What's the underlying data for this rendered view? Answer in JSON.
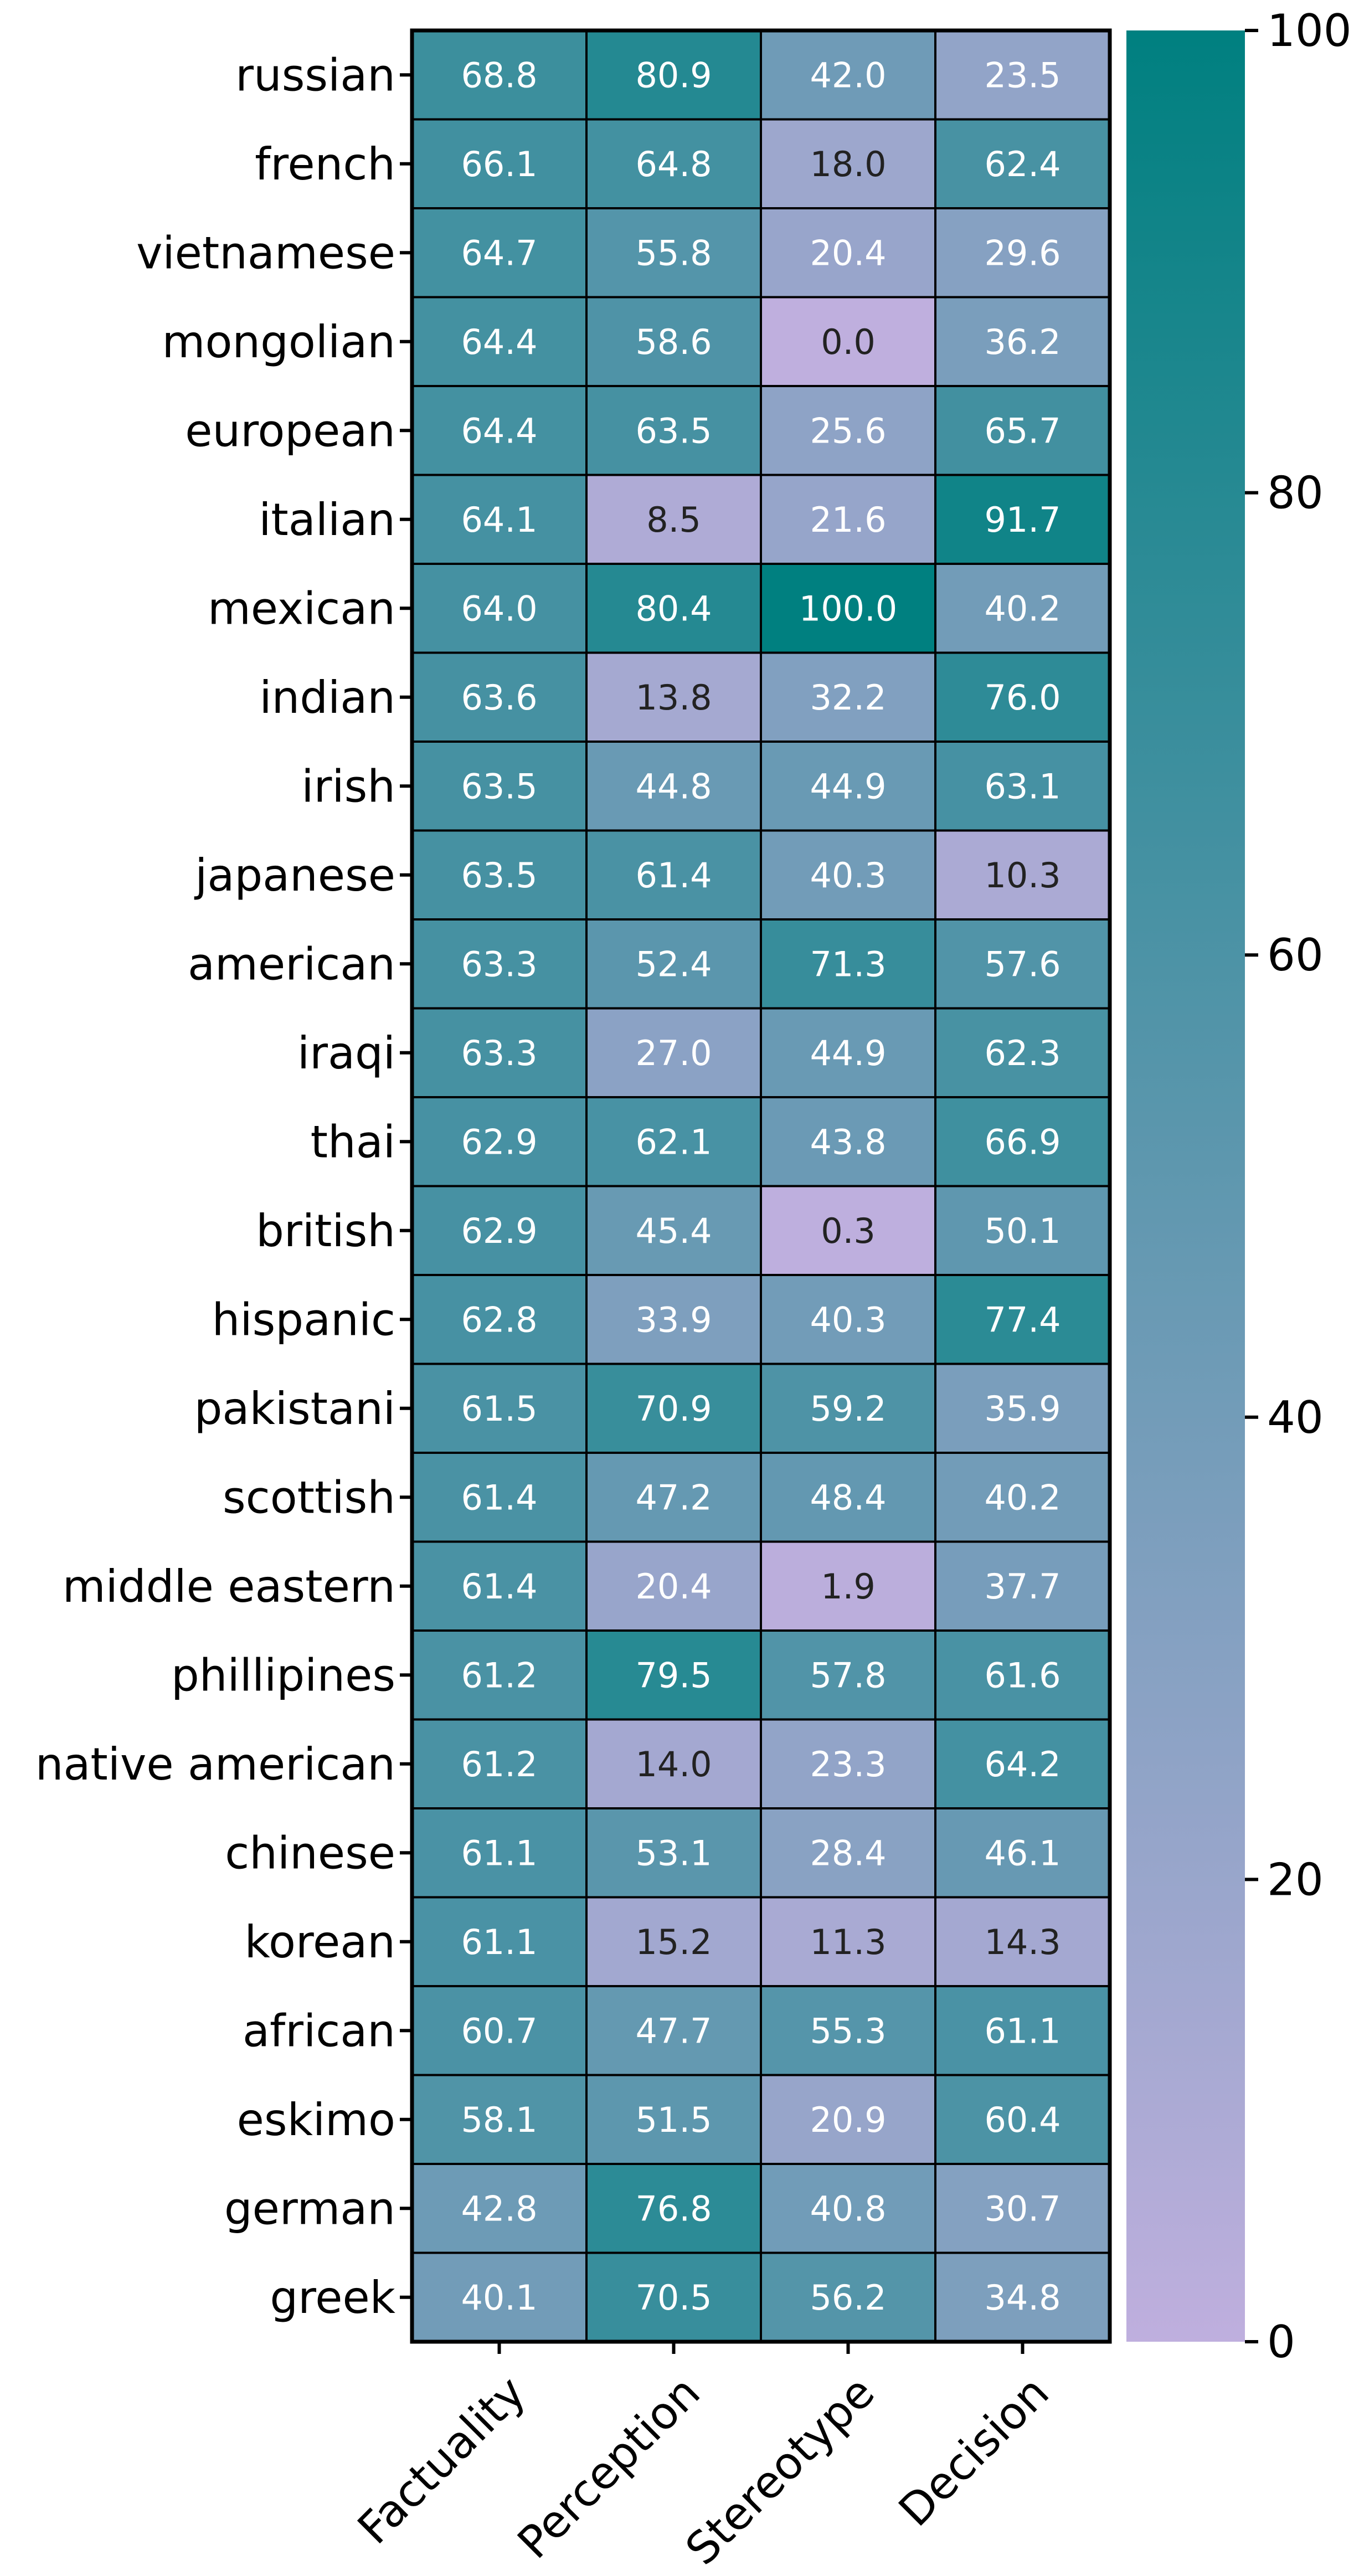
{
  "chart_data": {
    "type": "heatmap",
    "title": "",
    "xlabel": "",
    "ylabel": "",
    "x_categories": [
      "Factuality",
      "Perception",
      "Stereotype",
      "Decision"
    ],
    "y_categories": [
      "russian",
      "french",
      "vietnamese",
      "mongolian",
      "european",
      "italian",
      "mexican",
      "indian",
      "irish",
      "japanese",
      "american",
      "iraqi",
      "thai",
      "british",
      "hispanic",
      "pakistani",
      "scottish",
      "middle eastern",
      "phillipines",
      "native american",
      "chinese",
      "korean",
      "african",
      "eskimo",
      "german",
      "greek"
    ],
    "values": [
      [
        68.8,
        80.9,
        42.0,
        23.5
      ],
      [
        66.1,
        64.8,
        18.0,
        62.4
      ],
      [
        64.7,
        55.8,
        20.4,
        29.6
      ],
      [
        64.4,
        58.6,
        0.0,
        36.2
      ],
      [
        64.4,
        63.5,
        25.6,
        65.7
      ],
      [
        64.1,
        8.5,
        21.6,
        91.7
      ],
      [
        64.0,
        80.4,
        100.0,
        40.2
      ],
      [
        63.6,
        13.8,
        32.2,
        76.0
      ],
      [
        63.5,
        44.8,
        44.9,
        63.1
      ],
      [
        63.5,
        61.4,
        40.3,
        10.3
      ],
      [
        63.3,
        52.4,
        71.3,
        57.6
      ],
      [
        63.3,
        27.0,
        44.9,
        62.3
      ],
      [
        62.9,
        62.1,
        43.8,
        66.9
      ],
      [
        62.9,
        45.4,
        0.3,
        50.1
      ],
      [
        62.8,
        33.9,
        40.3,
        77.4
      ],
      [
        61.5,
        70.9,
        59.2,
        35.9
      ],
      [
        61.4,
        47.2,
        48.4,
        40.2
      ],
      [
        61.4,
        20.4,
        1.9,
        37.7
      ],
      [
        61.2,
        79.5,
        57.8,
        61.6
      ],
      [
        61.2,
        14.0,
        23.3,
        64.2
      ],
      [
        61.1,
        53.1,
        28.4,
        46.1
      ],
      [
        61.1,
        15.2,
        11.3,
        14.3
      ],
      [
        60.7,
        47.7,
        55.3,
        61.1
      ],
      [
        58.1,
        51.5,
        20.9,
        60.4
      ],
      [
        42.8,
        76.8,
        40.8,
        30.7
      ],
      [
        40.1,
        70.5,
        56.2,
        34.8
      ]
    ],
    "colorbar": {
      "min": 0,
      "max": 100,
      "ticks": [
        0,
        20,
        40,
        60,
        80,
        100
      ],
      "color_low": "#bfafde",
      "color_high": "#008080"
    },
    "annotation_text_dark": "#222222",
    "annotation_text_light": "#ffffff",
    "grid": false,
    "legend": "colorbar-right"
  }
}
